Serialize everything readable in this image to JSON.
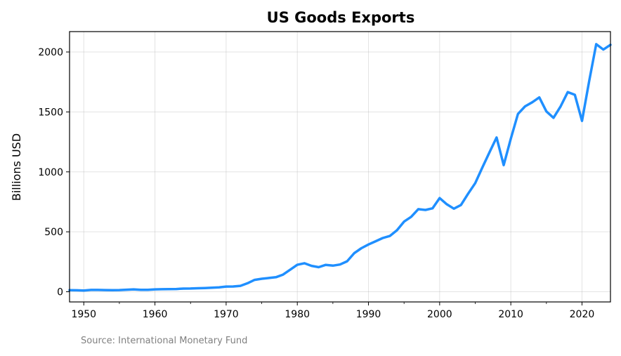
{
  "chart_data": {
    "type": "line",
    "title": "US Goods Exports",
    "xlabel": "",
    "ylabel": "Billions USD",
    "xlim": [
      1948,
      2024
    ],
    "ylim": [
      -85,
      2170
    ],
    "xticks": [
      1950,
      1960,
      1970,
      1980,
      1990,
      2000,
      2010,
      2020
    ],
    "yticks": [
      0,
      500,
      1000,
      1500,
      2000
    ],
    "grid": true,
    "source": "Source: International Monetary Fund",
    "series": [
      {
        "color": "#1f8fff",
        "x": [
          1948,
          1949,
          1950,
          1951,
          1952,
          1953,
          1954,
          1955,
          1956,
          1957,
          1958,
          1959,
          1960,
          1961,
          1962,
          1963,
          1964,
          1965,
          1966,
          1967,
          1968,
          1969,
          1970,
          1971,
          1972,
          1973,
          1974,
          1975,
          1976,
          1977,
          1978,
          1979,
          1980,
          1981,
          1982,
          1983,
          1984,
          1985,
          1986,
          1987,
          1988,
          1989,
          1990,
          1991,
          1992,
          1993,
          1994,
          1995,
          1996,
          1997,
          1998,
          1999,
          2000,
          2001,
          2002,
          2003,
          2004,
          2005,
          2006,
          2007,
          2008,
          2009,
          2010,
          2011,
          2012,
          2013,
          2014,
          2015,
          2016,
          2017,
          2018,
          2019,
          2020,
          2021,
          2022,
          2023,
          2024
        ],
        "values": [
          13,
          12,
          10,
          15,
          15,
          14,
          13,
          14,
          17,
          20,
          16,
          16,
          20,
          21,
          22,
          23,
          26,
          27,
          29,
          31,
          34,
          37,
          43,
          44,
          49,
          71,
          99,
          108,
          115,
          121,
          143,
          184,
          225,
          238,
          216,
          205,
          224,
          218,
          227,
          254,
          322,
          363,
          394,
          421,
          448,
          465,
          513,
          585,
          625,
          689,
          682,
          696,
          781,
          730,
          693,
          724,
          818,
          906,
          1036,
          1163,
          1287,
          1056,
          1278,
          1483,
          1546,
          1580,
          1621,
          1504,
          1451,
          1547,
          1665,
          1643,
          1425,
          1754,
          2065,
          2020,
          2060
        ]
      }
    ]
  }
}
